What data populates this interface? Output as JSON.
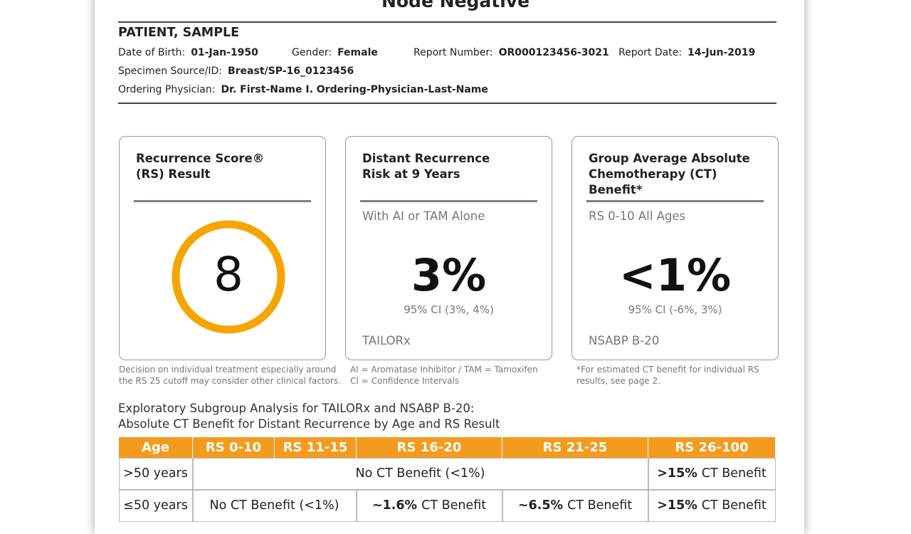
{
  "header": {
    "title": "Node Negative",
    "patient_name": "PATIENT, SAMPLE",
    "fields": [
      {
        "label": "Date of Birth:",
        "value": "01-Jan-1950"
      },
      {
        "label": "Gender:",
        "value": "Female"
      },
      {
        "label": "Report Number:",
        "value": "OR000123456-3021"
      },
      {
        "label": "Report Date:",
        "value": "14-Jun-2019"
      },
      {
        "label": "Specimen Source/ID:",
        "value": "Breast/SP-16_0123456"
      },
      {
        "label": "Ordering Physician:",
        "value": "Dr. First-Name I. Ordering-Physician-Last-Name"
      }
    ]
  },
  "cards": [
    {
      "title_lines": [
        "Recurrence Score®",
        "(RS) Result"
      ],
      "result": "8",
      "footnote_lines": [
        "Decision on individual treatment especially around",
        "the RS 25 cutoff may consider other clinical factors."
      ]
    },
    {
      "title_lines": [
        "Distant Recurrence",
        "Risk at 9 Years"
      ],
      "subtitle": "With AI or TAM Alone",
      "result": "3%",
      "ci": "95% CI (3%, 4%)",
      "source": "TAILORx",
      "footnote_lines": [
        "AI = Aromatase Inhibitor / TAM = Tamoxifen",
        "CI = Confidence Intervals"
      ]
    },
    {
      "title_lines": [
        "Group Average Absolute",
        "Chemotherapy (CT)",
        "Benefit*"
      ],
      "subtitle": "RS 0-10 All Ages",
      "result": "<1%",
      "ci": "95% CI (-6%, 3%)",
      "source": "NSABP B-20",
      "footnote_lines": [
        "*For estimated CT benefit for individual RS",
        "results, see page 2."
      ]
    }
  ],
  "table": {
    "caption_lines": [
      "Exploratory Subgroup Analysis for TAILORx and NSABP B-20:",
      "Absolute CT Benefit for Distant Recurrence by Age and RS Result"
    ],
    "header": [
      "Age",
      "RS 0-10",
      "RS 11-15",
      "RS 16-20",
      "RS 21-25",
      "RS 26-100"
    ],
    "rows": [
      [
        ">50 years",
        "No CT Benefit (<1%)",
        {
          "strong": ">15%",
          "text": "CT Benefit"
        }
      ],
      [
        "≤50 years",
        "No CT Benefit (<1%)",
        {
          "strong": "~1.6%",
          "text": "CT Benefit"
        },
        {
          "strong": "~6.5%",
          "text": "CT Benefit"
        },
        {
          "strong": ">15%",
          "text": "CT Benefit"
        }
      ]
    ]
  }
}
